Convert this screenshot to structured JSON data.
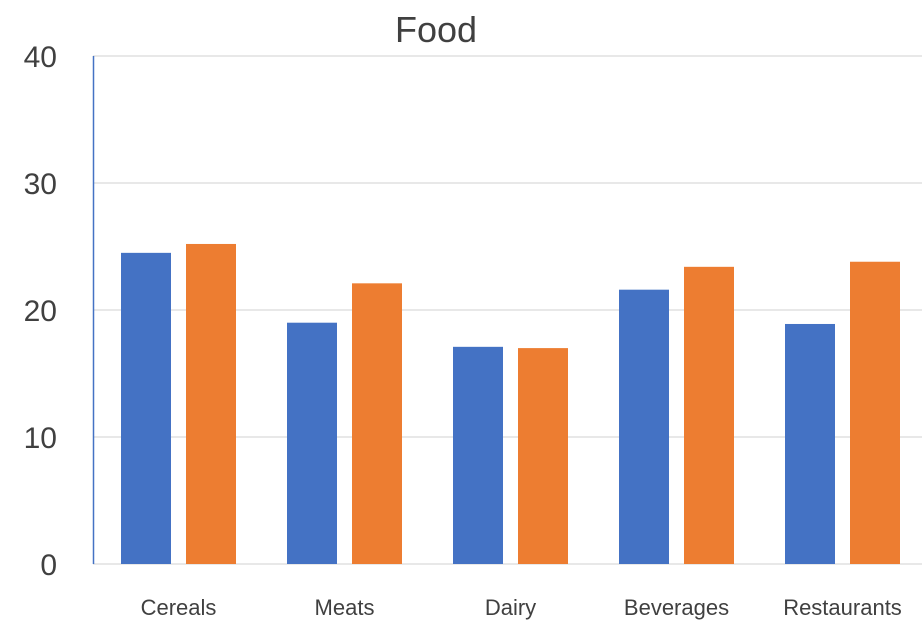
{
  "chart_data": {
    "type": "bar",
    "title": "Food",
    "xlabel": "",
    "ylabel": "",
    "categories": [
      "Cereals",
      "Meats",
      "Dairy",
      "Beverages",
      "Restaurants"
    ],
    "series": [
      {
        "values": [
          24.5,
          19.0,
          17.1,
          21.6,
          18.9
        ],
        "color": "#4472C4"
      },
      {
        "values": [
          25.2,
          22.1,
          17.0,
          23.4,
          23.8
        ],
        "color": "#ED7D31"
      }
    ],
    "ylim": [
      0,
      40
    ],
    "yticks": [
      "0",
      "10",
      "20",
      "30",
      "40"
    ],
    "grid": true,
    "legend": "none"
  }
}
